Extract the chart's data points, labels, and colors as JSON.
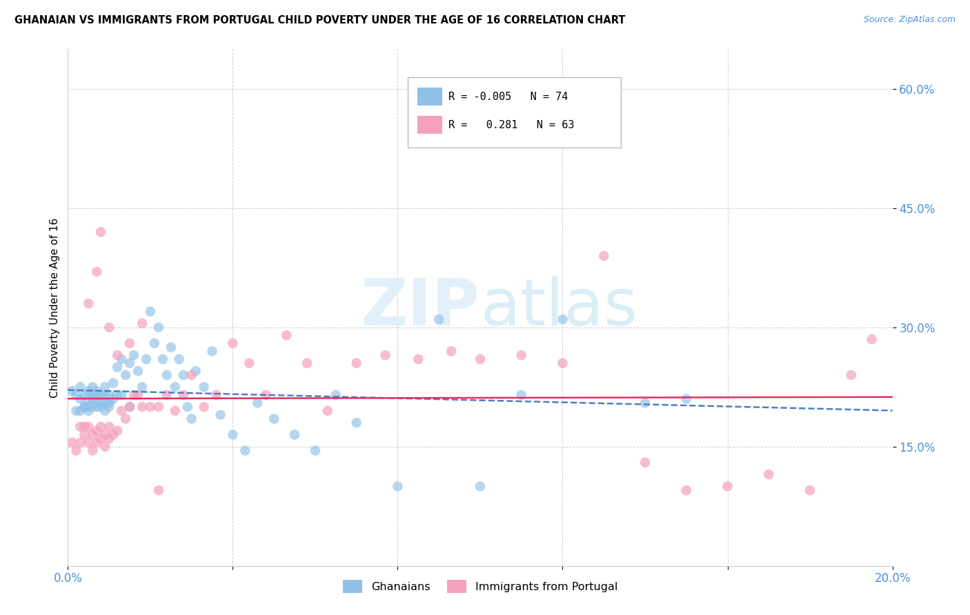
{
  "title": "GHANAIAN VS IMMIGRANTS FROM PORTUGAL CHILD POVERTY UNDER THE AGE OF 16 CORRELATION CHART",
  "source": "Source: ZipAtlas.com",
  "ylabel": "Child Poverty Under the Age of 16",
  "xlim": [
    0.0,
    0.2
  ],
  "ylim": [
    0.0,
    0.65
  ],
  "yticks": [
    0.15,
    0.3,
    0.45,
    0.6
  ],
  "ytick_labels": [
    "15.0%",
    "30.0%",
    "45.0%",
    "60.0%"
  ],
  "xticks": [
    0.0,
    0.04,
    0.08,
    0.12,
    0.16,
    0.2
  ],
  "xtick_labels": [
    "0.0%",
    "",
    "",
    "",
    "",
    "20.0%"
  ],
  "series1_label": "Ghanaians",
  "series2_label": "Immigrants from Portugal",
  "series1_color": "#90c0e8",
  "series2_color": "#f5a0bc",
  "trend1_color": "#4a7fc0",
  "trend2_color": "#e03060",
  "legend1_text": "R = -0.005   N = 74",
  "legend2_text": "R =   0.281   N = 63",
  "watermark": "ZIPatlas",
  "ghana_x": [
    0.001,
    0.002,
    0.002,
    0.003,
    0.003,
    0.003,
    0.004,
    0.004,
    0.004,
    0.005,
    0.005,
    0.005,
    0.005,
    0.006,
    0.006,
    0.006,
    0.006,
    0.007,
    0.007,
    0.007,
    0.007,
    0.008,
    0.008,
    0.008,
    0.009,
    0.009,
    0.009,
    0.009,
    0.01,
    0.01,
    0.01,
    0.011,
    0.011,
    0.012,
    0.012,
    0.013,
    0.013,
    0.014,
    0.015,
    0.015,
    0.016,
    0.017,
    0.018,
    0.019,
    0.02,
    0.021,
    0.022,
    0.023,
    0.024,
    0.025,
    0.026,
    0.027,
    0.028,
    0.029,
    0.03,
    0.031,
    0.033,
    0.035,
    0.037,
    0.04,
    0.043,
    0.046,
    0.05,
    0.055,
    0.06,
    0.065,
    0.07,
    0.08,
    0.09,
    0.1,
    0.11,
    0.12,
    0.14,
    0.15
  ],
  "ghana_y": [
    0.22,
    0.195,
    0.215,
    0.195,
    0.21,
    0.225,
    0.2,
    0.215,
    0.2,
    0.2,
    0.21,
    0.195,
    0.22,
    0.21,
    0.2,
    0.215,
    0.225,
    0.2,
    0.215,
    0.205,
    0.22,
    0.2,
    0.215,
    0.205,
    0.205,
    0.215,
    0.195,
    0.225,
    0.2,
    0.215,
    0.205,
    0.23,
    0.21,
    0.25,
    0.215,
    0.26,
    0.215,
    0.24,
    0.255,
    0.2,
    0.265,
    0.245,
    0.225,
    0.26,
    0.32,
    0.28,
    0.3,
    0.26,
    0.24,
    0.275,
    0.225,
    0.26,
    0.24,
    0.2,
    0.185,
    0.245,
    0.225,
    0.27,
    0.19,
    0.165,
    0.145,
    0.205,
    0.185,
    0.165,
    0.145,
    0.215,
    0.18,
    0.1,
    0.31,
    0.1,
    0.215,
    0.31,
    0.205,
    0.21
  ],
  "portugal_x": [
    0.001,
    0.002,
    0.003,
    0.003,
    0.004,
    0.004,
    0.005,
    0.005,
    0.006,
    0.006,
    0.007,
    0.007,
    0.008,
    0.008,
    0.009,
    0.009,
    0.01,
    0.01,
    0.011,
    0.012,
    0.013,
    0.014,
    0.015,
    0.016,
    0.017,
    0.018,
    0.02,
    0.022,
    0.024,
    0.026,
    0.028,
    0.03,
    0.033,
    0.036,
    0.04,
    0.044,
    0.048,
    0.053,
    0.058,
    0.063,
    0.07,
    0.077,
    0.085,
    0.093,
    0.1,
    0.11,
    0.12,
    0.13,
    0.14,
    0.15,
    0.16,
    0.17,
    0.18,
    0.19,
    0.195,
    0.005,
    0.007,
    0.008,
    0.01,
    0.012,
    0.015,
    0.018,
    0.022
  ],
  "portugal_y": [
    0.155,
    0.145,
    0.175,
    0.155,
    0.165,
    0.175,
    0.155,
    0.175,
    0.145,
    0.165,
    0.155,
    0.17,
    0.16,
    0.175,
    0.15,
    0.165,
    0.16,
    0.175,
    0.165,
    0.17,
    0.195,
    0.185,
    0.2,
    0.215,
    0.215,
    0.2,
    0.2,
    0.2,
    0.215,
    0.195,
    0.215,
    0.24,
    0.2,
    0.215,
    0.28,
    0.255,
    0.215,
    0.29,
    0.255,
    0.195,
    0.255,
    0.265,
    0.26,
    0.27,
    0.26,
    0.265,
    0.255,
    0.39,
    0.13,
    0.095,
    0.1,
    0.115,
    0.095,
    0.24,
    0.285,
    0.33,
    0.37,
    0.42,
    0.3,
    0.265,
    0.28,
    0.305,
    0.095
  ]
}
